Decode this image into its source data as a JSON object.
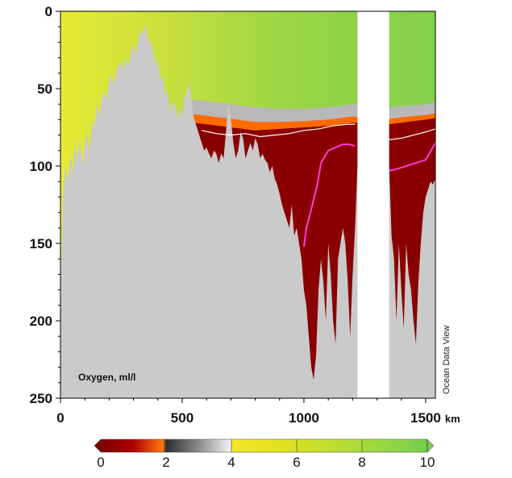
{
  "chart_data": {
    "type": "heatmap",
    "title": "",
    "variable_label": "Oxygen, ml/l",
    "credit": "Ocean Data View",
    "x_unit": "km",
    "x_ticks": [
      0,
      500,
      1000,
      1500
    ],
    "y_ticks": [
      0,
      50,
      100,
      150,
      200,
      250
    ],
    "xlim": [
      0,
      1540
    ],
    "ylim": [
      0,
      250
    ],
    "y_inverted": true,
    "colorbar": {
      "ticks": [
        0,
        2,
        4,
        6,
        8,
        10
      ],
      "range": [
        0,
        10
      ],
      "extend": "both",
      "colors": {
        "anoxic": "#7a0000",
        "low": "#ff7a10",
        "transition_dark": "#3a3a3a",
        "transition_light": "#e0e0e0",
        "mid": "#f2e31a",
        "high": "#7ccf4a"
      }
    },
    "bottom_color": "#cacaca",
    "no_data_color": "#ffffff",
    "contours": [
      {
        "level": 0.2,
        "color": "#ff3ad8",
        "x": [
          1000,
          1010,
          1030,
          1055,
          1070,
          1100,
          1130,
          1160,
          1185,
          1210
        ],
        "depth": [
          152,
          140,
          128,
          112,
          98,
          90,
          88,
          86,
          86,
          87
        ]
      },
      {
        "level": 0.2,
        "color": "#ff3ad8",
        "x": [
          1350,
          1380,
          1420,
          1460,
          1500,
          1540
        ],
        "depth": [
          103,
          102,
          100,
          98,
          96,
          85
        ]
      },
      {
        "level": 1.0,
        "color": "#ffffff",
        "x": [
          580,
          640,
          700,
          760,
          820,
          880,
          940,
          1000,
          1060,
          1120,
          1180,
          1210
        ],
        "depth": [
          77,
          79,
          80,
          79,
          81,
          80,
          79,
          77,
          76,
          74,
          73,
          73
        ]
      },
      {
        "level": 1.0,
        "color": "#ffffff",
        "x": [
          1350,
          1400,
          1450,
          1500,
          1540
        ],
        "depth": [
          83,
          82,
          80,
          78,
          76
        ]
      }
    ],
    "oxygen_profile": {
      "x": [
        0,
        100,
        200,
        300,
        400,
        500,
        540,
        600,
        700,
        800,
        900,
        1000,
        1100,
        1200,
        1350,
        1400,
        1500,
        1540
      ],
      "upper_anoxic_depth": [
        null,
        null,
        null,
        null,
        null,
        null,
        72,
        73,
        75,
        77,
        76,
        75,
        74,
        72,
        73,
        72,
        70,
        69
      ],
      "oxycline_top_depth": [
        null,
        null,
        null,
        null,
        null,
        null,
        57,
        58,
        60,
        62,
        63,
        63,
        62,
        60,
        62,
        61,
        60,
        59
      ]
    },
    "bathymetry": {
      "x": [
        0,
        10,
        20,
        30,
        40,
        50,
        60,
        70,
        80,
        90,
        100,
        110,
        120,
        130,
        140,
        150,
        160,
        170,
        180,
        190,
        200,
        210,
        220,
        230,
        240,
        250,
        260,
        270,
        280,
        290,
        300,
        310,
        320,
        330,
        340,
        350,
        360,
        370,
        380,
        390,
        400,
        410,
        420,
        430,
        440,
        450,
        460,
        470,
        480,
        490,
        500,
        510,
        520,
        530,
        540,
        550,
        560,
        570,
        580,
        590,
        600,
        610,
        620,
        630,
        640,
        650,
        660,
        670,
        680,
        690,
        700,
        710,
        720,
        730,
        740,
        750,
        760,
        770,
        780,
        790,
        800,
        810,
        820,
        830,
        840,
        850,
        860,
        870,
        880,
        890,
        900,
        910,
        920,
        930,
        940,
        950,
        960,
        970,
        980,
        990,
        1000,
        1010,
        1020,
        1030,
        1040,
        1050,
        1060,
        1070,
        1080,
        1090,
        1100,
        1110,
        1120,
        1130,
        1140,
        1150,
        1160,
        1170,
        1180,
        1190,
        1200,
        1210,
        1220,
        1350,
        1360,
        1370,
        1380,
        1390,
        1400,
        1410,
        1420,
        1430,
        1440,
        1450,
        1460,
        1470,
        1480,
        1490,
        1500,
        1510,
        1520,
        1530,
        1540
      ],
      "depth": [
        180,
        120,
        100,
        110,
        92,
        105,
        85,
        95,
        82,
        100,
        86,
        78,
        90,
        70,
        75,
        60,
        68,
        55,
        52,
        58,
        45,
        40,
        48,
        38,
        35,
        32,
        38,
        30,
        35,
        25,
        22,
        28,
        18,
        12,
        15,
        8,
        20,
        18,
        25,
        35,
        30,
        45,
        40,
        55,
        50,
        65,
        60,
        58,
        70,
        62,
        68,
        55,
        52,
        45,
        62,
        70,
        75,
        80,
        85,
        90,
        88,
        92,
        95,
        90,
        92,
        98,
        92,
        95,
        78,
        60,
        70,
        85,
        95,
        90,
        78,
        82,
        95,
        90,
        85,
        90,
        82,
        86,
        95,
        92,
        96,
        98,
        104,
        100,
        108,
        112,
        118,
        125,
        130,
        135,
        140,
        125,
        145,
        140,
        150,
        160,
        180,
        190,
        210,
        230,
        238,
        222,
        180,
        160,
        175,
        200,
        150,
        170,
        200,
        215,
        160,
        150,
        140,
        150,
        175,
        210,
        170,
        140,
        100,
        100,
        145,
        160,
        200,
        150,
        180,
        205,
        150,
        170,
        180,
        200,
        215,
        175,
        150,
        130,
        120,
        115,
        110,
        112,
        108
      ]
    }
  }
}
